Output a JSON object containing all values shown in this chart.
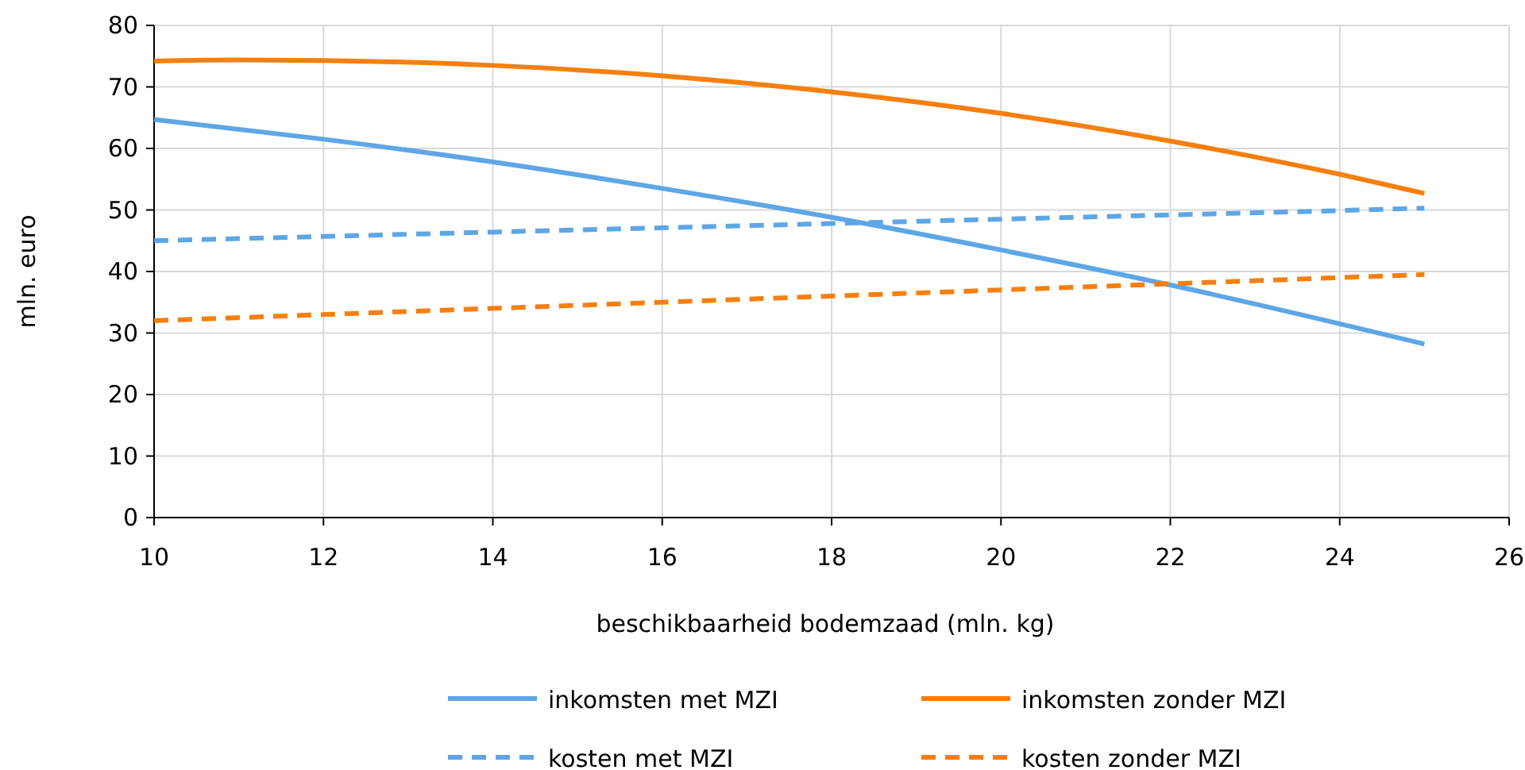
{
  "chart_data": {
    "type": "line",
    "xlabel": "beschikbaarheid bodemzaad (mln. kg)",
    "ylabel": "mln. euro",
    "xlim": [
      10,
      26
    ],
    "xticks": [
      10,
      12,
      14,
      16,
      18,
      20,
      22,
      24,
      26
    ],
    "ylim": [
      0,
      80
    ],
    "yticks": [
      0,
      10,
      20,
      30,
      40,
      50,
      60,
      70,
      80
    ],
    "grid": true,
    "legend": "bottom",
    "marker": "none",
    "series": [
      {
        "name": "inkomsten met MZI",
        "color": "#5ea6e6",
        "line_style": "solid",
        "x": [
          10,
          12,
          14,
          16,
          18,
          20,
          22,
          24,
          25
        ],
        "values": [
          64.7,
          61.5,
          57.8,
          53.5,
          48.8,
          43.5,
          37.8,
          31.5,
          28.2
        ]
      },
      {
        "name": "inkomsten zonder MZI",
        "color": "#f77f0e",
        "line_style": "solid",
        "x": [
          10,
          11,
          12,
          14,
          16,
          18,
          20,
          22,
          24,
          25
        ],
        "values": [
          74.2,
          74.4,
          74.3,
          73.5,
          71.8,
          69.2,
          65.7,
          61.2,
          55.8,
          52.7
        ]
      },
      {
        "name": "kosten met MZI",
        "color": "#5ea6e6",
        "line_style": "dashed",
        "x": [
          10,
          12,
          14,
          16,
          18,
          20,
          22,
          24,
          25
        ],
        "values": [
          45,
          45.7,
          46.4,
          47.1,
          47.8,
          48.5,
          49.2,
          49.9,
          50.3
        ]
      },
      {
        "name": "kosten zonder MZI",
        "color": "#f77f0e",
        "line_style": "dashed",
        "x": [
          10,
          12,
          14,
          16,
          18,
          20,
          22,
          24,
          25
        ],
        "values": [
          32,
          33,
          34,
          35,
          36,
          37,
          38,
          39,
          39.5
        ]
      }
    ]
  }
}
